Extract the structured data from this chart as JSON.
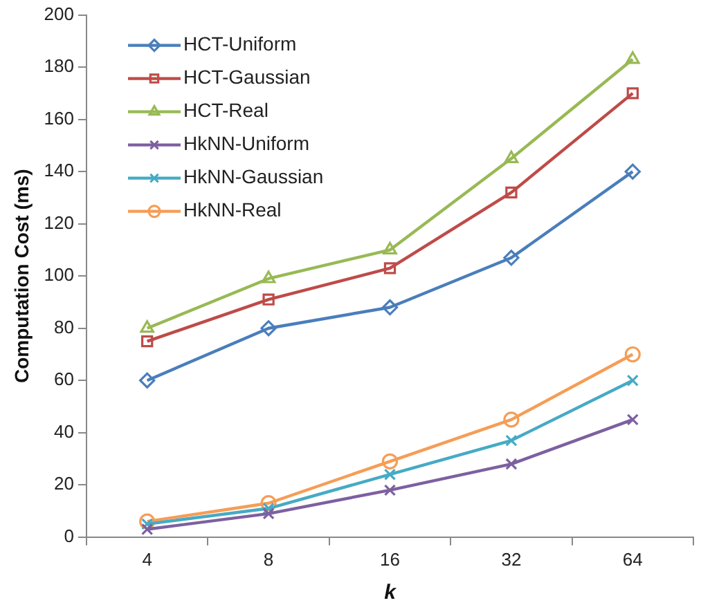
{
  "chart_data": {
    "type": "line",
    "xlabel": "k",
    "ylabel": "Computation Cost (ms)",
    "categories": [
      "4",
      "8",
      "16",
      "32",
      "64"
    ],
    "ylim": [
      0,
      200
    ],
    "yticks": [
      0,
      20,
      40,
      60,
      80,
      100,
      120,
      140,
      160,
      180,
      200
    ],
    "grid": false,
    "legend": "top left",
    "line_style": "solid",
    "series": [
      {
        "name": "HCT-Uniform",
        "color": "#4a7ebb",
        "marker": "diamond",
        "values": [
          60,
          80,
          88,
          107,
          140
        ]
      },
      {
        "name": "HCT-Gaussian",
        "color": "#be4b48",
        "marker": "square",
        "values": [
          75,
          91,
          103,
          132,
          170
        ]
      },
      {
        "name": "HCT-Real",
        "color": "#98b954",
        "marker": "triangle",
        "values": [
          80,
          99,
          110,
          145,
          183
        ]
      },
      {
        "name": "HkNN-Uniform",
        "color": "#7d60a0",
        "marker": "cross",
        "values": [
          3,
          9,
          18,
          28,
          45
        ]
      },
      {
        "name": "HkNN-Gaussian",
        "color": "#46aac5",
        "marker": "cross",
        "values": [
          5,
          11,
          24,
          37,
          60
        ]
      },
      {
        "name": "HkNN-Real",
        "color": "#f59d56",
        "marker": "circle",
        "values": [
          6,
          13,
          29,
          45,
          70
        ]
      }
    ]
  }
}
